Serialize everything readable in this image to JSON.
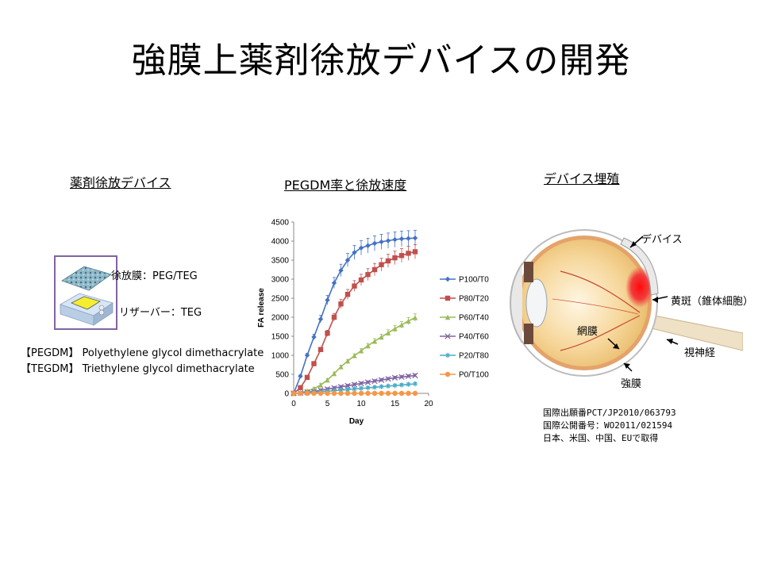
{
  "slide": {
    "title": "強膜上薬剤徐放デバイスの開発"
  },
  "left": {
    "heading": "薬剤徐放デバイス",
    "label_membrane": "徐放膜：PEG/TEG",
    "label_reservoir": "リザーバー：TEG",
    "def_pegdm": "【PEGDM】 Polyethylene glycol dimethacrylate",
    "def_tegdm": "【TEGDM】 Triethylene glycol dimethacrylate"
  },
  "middle": {
    "heading": "PEGDM率と徐放速度"
  },
  "right": {
    "heading": "デバイス埋殖",
    "label_device": "デバイス",
    "label_macula": "黄斑（錐体細胞）",
    "label_retina": "網膜",
    "label_optic_nerve": "視神経",
    "label_sclera": "強膜",
    "patent_lines": [
      "国際出願番PCT/JP2010/063793",
      "国際公開番号：WO2011/021594",
      "日本、米国、中国、EUで取得"
    ]
  },
  "chart_data": {
    "type": "line",
    "xlabel": "Day",
    "ylabel": "FA release",
    "xlim": [
      0,
      20
    ],
    "ylim": [
      0,
      4500
    ],
    "xticks": [
      0,
      5,
      10,
      15,
      20
    ],
    "yticks": [
      0,
      500,
      1000,
      1500,
      2000,
      2500,
      3000,
      3500,
      4000,
      4500
    ],
    "legend_position": "right",
    "grid": false,
    "x": [
      0,
      1,
      2,
      3,
      4,
      5,
      6,
      7,
      8,
      9,
      10,
      11,
      12,
      13,
      14,
      15,
      16,
      17,
      18
    ],
    "series": [
      {
        "name": "P100/T0",
        "color": "#4472c4",
        "marker": "diamond",
        "values": [
          0,
          450,
          1000,
          1480,
          1950,
          2450,
          2900,
          3230,
          3500,
          3700,
          3820,
          3880,
          3940,
          3980,
          4010,
          4040,
          4060,
          4070,
          4080
        ]
      },
      {
        "name": "P80/T20",
        "color": "#c0504d",
        "marker": "square",
        "values": [
          0,
          150,
          420,
          780,
          1150,
          1580,
          2000,
          2350,
          2600,
          2820,
          2980,
          3120,
          3250,
          3380,
          3480,
          3560,
          3620,
          3680,
          3720
        ]
      },
      {
        "name": "P60/T40",
        "color": "#9bbb59",
        "marker": "triangle",
        "values": [
          0,
          20,
          60,
          120,
          220,
          350,
          520,
          700,
          850,
          990,
          1120,
          1250,
          1370,
          1480,
          1590,
          1700,
          1800,
          1900,
          1990
        ]
      },
      {
        "name": "P40/T60",
        "color": "#8064a2",
        "marker": "x",
        "values": [
          0,
          10,
          30,
          50,
          80,
          110,
          140,
          170,
          200,
          230,
          260,
          290,
          320,
          350,
          380,
          410,
          430,
          450,
          470
        ]
      },
      {
        "name": "P20/T80",
        "color": "#4bacc6",
        "marker": "star",
        "values": [
          0,
          5,
          15,
          25,
          40,
          55,
          70,
          85,
          100,
          115,
          130,
          145,
          160,
          175,
          190,
          205,
          220,
          235,
          250
        ]
      },
      {
        "name": "P0/T100",
        "color": "#f79646",
        "marker": "circle",
        "values": [
          0,
          0,
          0,
          0,
          0,
          0,
          0,
          0,
          0,
          0,
          0,
          0,
          0,
          0,
          0,
          0,
          0,
          0,
          0
        ]
      }
    ]
  }
}
